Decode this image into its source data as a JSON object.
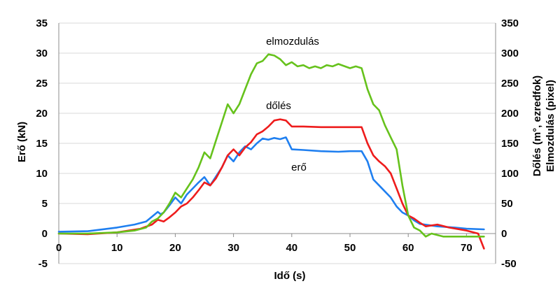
{
  "chart_data": {
    "type": "line",
    "xlabel": "Idő (s)",
    "ylabel": "Erő (kN)",
    "y2label_line1": "Dőlés (m°, ezredfok)",
    "y2label_line2": "Elmozdulás (pixel)",
    "xlim": [
      0,
      75
    ],
    "ylim": [
      -5,
      35
    ],
    "y2lim": [
      -50,
      350
    ],
    "x_ticks": [
      "0",
      "10",
      "20",
      "30",
      "40",
      "50",
      "60",
      "70"
    ],
    "y_ticks": [
      "-5",
      "0",
      "5",
      "10",
      "15",
      "20",
      "25",
      "30",
      "35"
    ],
    "y2_ticks": [
      "-50",
      "0",
      "50",
      "100",
      "150",
      "200",
      "250",
      "300",
      "350"
    ],
    "grid": "horizontal",
    "annotations": {
      "elmozdulas": "elmozdulás",
      "doles": "dőlés",
      "ero": "erő"
    },
    "series": [
      {
        "key": "ero",
        "axis": "left",
        "color": "#1f7ff0",
        "x": [
          0,
          5,
          10,
          13,
          15,
          16,
          17,
          17.5,
          18,
          19,
          20,
          21,
          22,
          23,
          24,
          25,
          26,
          27,
          28,
          29,
          30,
          31,
          32,
          33,
          34,
          35,
          36,
          37,
          38,
          39,
          40,
          42,
          45,
          48,
          50,
          52,
          53,
          54,
          55,
          56,
          57,
          58,
          59,
          60,
          61,
          62,
          65,
          68,
          70,
          73
        ],
        "y": [
          0.3,
          0.4,
          1.0,
          1.5,
          2.0,
          2.8,
          3.6,
          3.2,
          3.5,
          4.7,
          6.0,
          5.0,
          6.5,
          7.5,
          8.5,
          9.4,
          8.0,
          9.5,
          11.0,
          13.0,
          12.0,
          13.5,
          14.5,
          14.0,
          15.0,
          15.8,
          15.6,
          15.9,
          15.7,
          16.0,
          14.0,
          13.9,
          13.7,
          13.6,
          13.7,
          13.7,
          12.0,
          9.0,
          8.0,
          7.0,
          6.0,
          4.5,
          3.5,
          3.0,
          2.2,
          1.6,
          1.2,
          1.0,
          0.8,
          0.7
        ]
      },
      {
        "key": "doles",
        "axis": "right",
        "color": "#ee1c1c",
        "x": [
          0,
          5,
          10,
          14,
          16,
          17,
          18,
          19,
          20,
          21,
          22,
          23,
          24,
          25,
          26,
          27,
          28,
          29,
          30,
          31,
          32,
          33,
          34,
          35,
          36,
          37,
          38,
          39,
          40,
          42,
          45,
          48,
          50,
          52,
          53,
          54,
          55,
          56,
          57,
          58,
          59,
          60,
          61,
          62,
          63,
          65,
          67,
          70,
          72,
          73
        ],
        "y": [
          0,
          -1,
          2,
          8,
          15,
          23,
          20,
          27,
          35,
          45,
          50,
          60,
          72,
          85,
          80,
          92,
          110,
          130,
          140,
          130,
          143,
          152,
          165,
          170,
          178,
          188,
          190,
          188,
          178,
          178,
          177,
          177,
          177,
          177,
          150,
          130,
          120,
          112,
          100,
          75,
          50,
          30,
          25,
          18,
          12,
          15,
          10,
          5,
          0,
          -25
        ]
      },
      {
        "key": "elmozdulas",
        "axis": "right",
        "color": "#66c21c",
        "x": [
          0,
          5,
          10,
          13,
          15,
          16,
          17,
          18,
          19,
          20,
          21,
          22,
          23,
          24,
          25,
          26,
          27,
          28,
          29,
          30,
          31,
          32,
          33,
          34,
          35,
          36,
          37,
          38,
          39,
          40,
          41,
          42,
          43,
          44,
          45,
          46,
          47,
          48,
          50,
          51,
          52,
          53,
          54,
          55,
          56,
          57,
          58,
          59,
          60,
          61,
          62,
          63,
          64,
          66,
          70,
          73
        ],
        "y": [
          0,
          0,
          2,
          5,
          10,
          20,
          25,
          35,
          50,
          68,
          60,
          75,
          90,
          110,
          135,
          125,
          155,
          185,
          215,
          200,
          215,
          240,
          265,
          283,
          287,
          298,
          296,
          290,
          280,
          285,
          278,
          280,
          275,
          278,
          275,
          280,
          278,
          282,
          275,
          278,
          275,
          240,
          215,
          205,
          180,
          160,
          140,
          80,
          30,
          10,
          5,
          -5,
          0,
          -5,
          -5,
          -5
        ]
      }
    ]
  }
}
